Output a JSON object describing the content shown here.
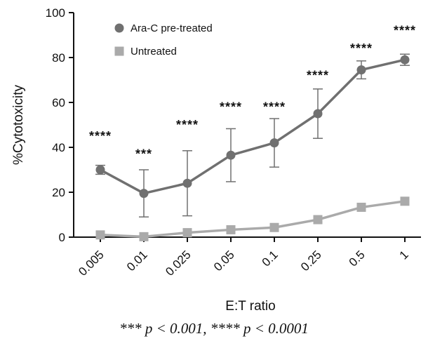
{
  "chart_data": {
    "type": "line",
    "xlabel": "E:T ratio",
    "ylabel": "%Cytotoxicity",
    "categories": [
      "0.005",
      "0.01",
      "0.025",
      "0.05",
      "0.1",
      "0.25",
      "0.5",
      "1"
    ],
    "ylim": [
      0,
      100
    ],
    "yticks": [
      "0",
      "20",
      "40",
      "60",
      "80",
      "100"
    ],
    "grid": false,
    "legend_position": "top-left",
    "series": [
      {
        "name": "Ara-C pre-treated",
        "marker": "circle",
        "color": "#707070",
        "values": [
          30,
          19.5,
          24,
          36.5,
          42,
          55,
          74.5,
          79
        ],
        "error": [
          2,
          10.5,
          14.5,
          11.8,
          10.8,
          11,
          4,
          2.5
        ]
      },
      {
        "name": "Untreated",
        "marker": "square",
        "color": "#aaaaaa",
        "values": [
          1,
          0.2,
          2,
          3.3,
          4.3,
          7.8,
          13.3,
          16
        ],
        "error": [
          0,
          0,
          0,
          0,
          0,
          0,
          0,
          0
        ]
      }
    ],
    "annotations": [
      "****",
      "***",
      "****",
      "****",
      "****",
      "****",
      "****",
      "****"
    ],
    "annotation_y": [
      45,
      37,
      50,
      58,
      58,
      72,
      84,
      92
    ]
  },
  "footnote": "*** p < 0.001, **** p < 0.0001"
}
